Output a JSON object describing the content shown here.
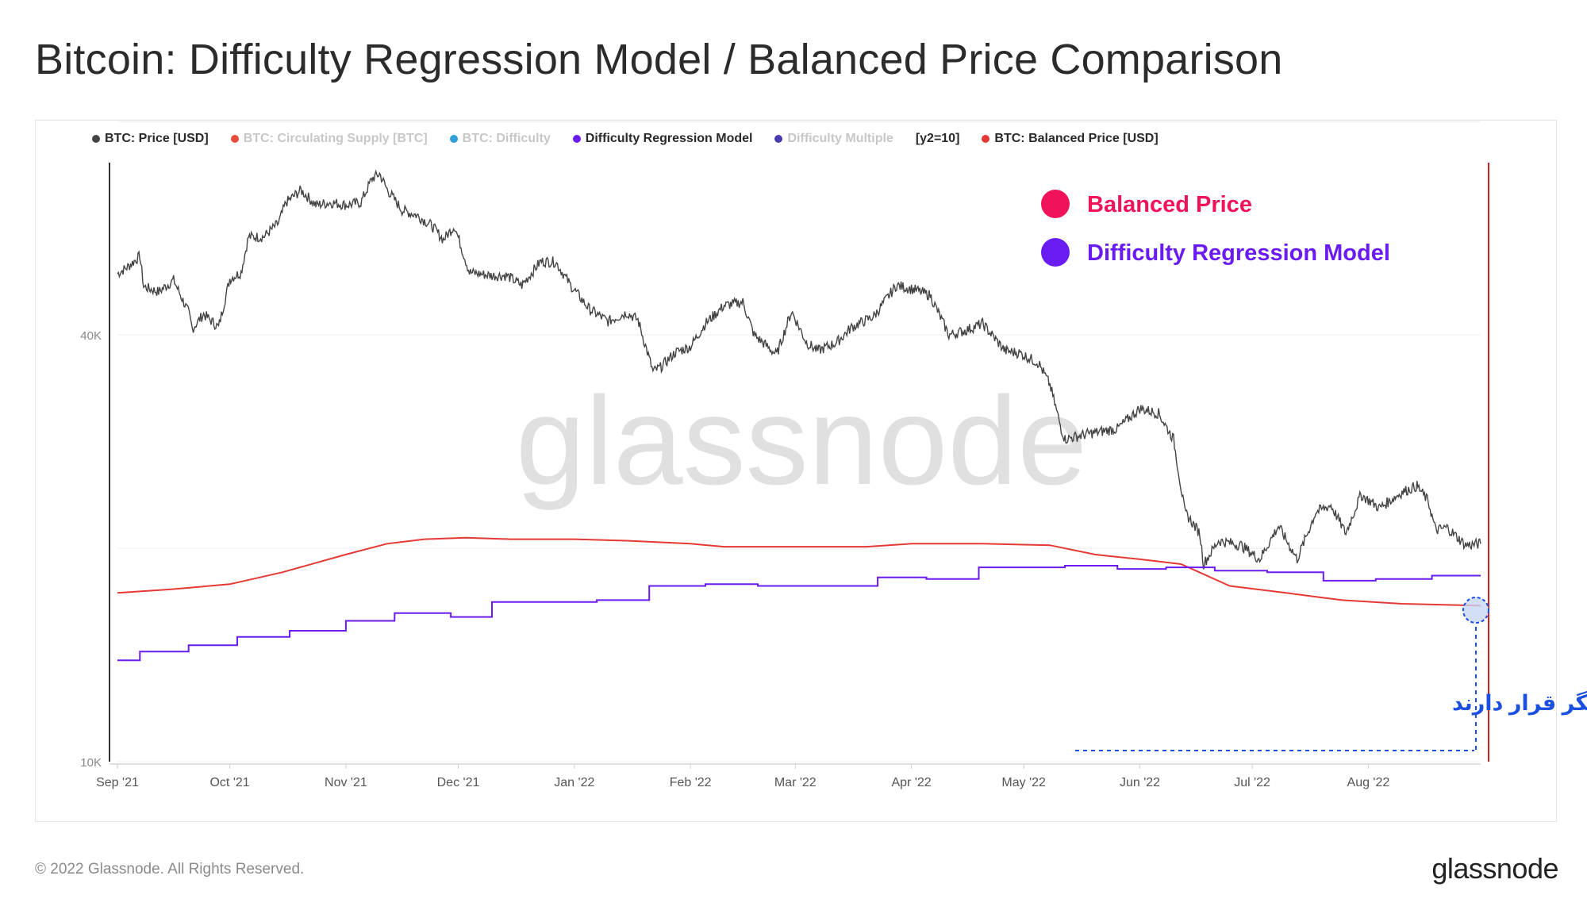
{
  "title": "Bitcoin: Difficulty Regression Model / Balanced Price Comparison",
  "legend": [
    {
      "label": "BTC: Price [USD]",
      "color": "#444444",
      "state": "active"
    },
    {
      "label": "BTC: Circulating Supply [BTC]",
      "color": "#e74c3c",
      "state": "dim"
    },
    {
      "label": "BTC: Difficulty",
      "color": "#2f9ed8",
      "state": "dim"
    },
    {
      "label": "Difficulty Regression Model",
      "color": "#6a1bf2",
      "state": "active"
    },
    {
      "label": "Difficulty Multiple",
      "color": "#4a3bb0",
      "state": "dim"
    },
    {
      "label": "[y2=10]",
      "color": "",
      "state": "active"
    },
    {
      "label": "BTC: Balanced Price [USD]",
      "color": "#e53935",
      "state": "active"
    }
  ],
  "annotations": {
    "balanced_price": {
      "label": "Balanced Price",
      "color": "#f0135a"
    },
    "regression_model": {
      "label": "Difficulty Regression Model",
      "color": "#6a1bf2"
    },
    "persian_note": {
      "text": "این دو معیار در تلاقی یکدیگر قرار دارند",
      "color": "#1a4fe0"
    }
  },
  "watermark": "glassnode",
  "footer": {
    "copyright": "© 2022 Glassnode. All Rights Reserved.",
    "logo": "glassnode"
  },
  "chart_data": {
    "type": "line",
    "title": "Bitcoin: Difficulty Regression Model / Balanced Price Comparison",
    "y_scale": "log",
    "ylim": [
      10000,
      70000
    ],
    "y_ticks": [
      {
        "value": 10000,
        "label": "10K"
      },
      {
        "value": 40000,
        "label": "40K"
      }
    ],
    "x_ticks": [
      "Sep '21",
      "Oct '21",
      "Nov '21",
      "Dec '21",
      "Jan '22",
      "Feb '22",
      "Mar '22",
      "Apr '22",
      "May '22",
      "Jun '22",
      "Jul '22",
      "Aug '22"
    ],
    "xlim": [
      "2021-09-01",
      "2022-08-31"
    ],
    "grid": "horizontal",
    "series": [
      {
        "name": "BTC: Price [USD]",
        "color": "#444444",
        "points": [
          [
            "2021-09-01",
            48800
          ],
          [
            "2021-09-04",
            50000
          ],
          [
            "2021-09-07",
            51700
          ],
          [
            "2021-09-08",
            46800
          ],
          [
            "2021-09-12",
            46000
          ],
          [
            "2021-09-16",
            47800
          ],
          [
            "2021-09-20",
            43000
          ],
          [
            "2021-09-21",
            40800
          ],
          [
            "2021-09-24",
            42800
          ],
          [
            "2021-09-28",
            41000
          ],
          [
            "2021-10-01",
            48000
          ],
          [
            "2021-10-04",
            49000
          ],
          [
            "2021-10-06",
            55000
          ],
          [
            "2021-10-10",
            55000
          ],
          [
            "2021-10-14",
            57500
          ],
          [
            "2021-10-16",
            61500
          ],
          [
            "2021-10-20",
            64000
          ],
          [
            "2021-10-24",
            61000
          ],
          [
            "2021-10-28",
            61500
          ],
          [
            "2021-11-01",
            61000
          ],
          [
            "2021-11-05",
            61500
          ],
          [
            "2021-11-08",
            66500
          ],
          [
            "2021-11-10",
            67500
          ],
          [
            "2021-11-12",
            64200
          ],
          [
            "2021-11-16",
            60000
          ],
          [
            "2021-11-20",
            59000
          ],
          [
            "2021-11-24",
            57000
          ],
          [
            "2021-11-27",
            54500
          ],
          [
            "2021-11-30",
            57000
          ],
          [
            "2021-12-04",
            49000
          ],
          [
            "2021-12-10",
            48500
          ],
          [
            "2021-12-14",
            48500
          ],
          [
            "2021-12-18",
            47000
          ],
          [
            "2021-12-23",
            50800
          ],
          [
            "2021-12-27",
            50700
          ],
          [
            "2021-12-31",
            47000
          ],
          [
            "2022-01-05",
            43500
          ],
          [
            "2022-01-10",
            41800
          ],
          [
            "2022-01-15",
            43000
          ],
          [
            "2022-01-18",
            42000
          ],
          [
            "2022-01-22",
            35500
          ],
          [
            "2022-01-24",
            36000
          ],
          [
            "2022-01-28",
            37800
          ],
          [
            "2022-02-01",
            38500
          ],
          [
            "2022-02-05",
            41500
          ],
          [
            "2022-02-10",
            44000
          ],
          [
            "2022-02-15",
            44500
          ],
          [
            "2022-02-18",
            40000
          ],
          [
            "2022-02-24",
            37500
          ],
          [
            "2022-02-28",
            43200
          ],
          [
            "2022-03-04",
            39000
          ],
          [
            "2022-03-07",
            38000
          ],
          [
            "2022-03-12",
            39000
          ],
          [
            "2022-03-16",
            41000
          ],
          [
            "2022-03-22",
            42500
          ],
          [
            "2022-03-28",
            47000
          ],
          [
            "2022-04-02",
            46300
          ],
          [
            "2022-04-06",
            45500
          ],
          [
            "2022-04-11",
            40000
          ],
          [
            "2022-04-15",
            40500
          ],
          [
            "2022-04-20",
            41500
          ],
          [
            "2022-04-26",
            38000
          ],
          [
            "2022-04-30",
            37700
          ],
          [
            "2022-05-05",
            36500
          ],
          [
            "2022-05-08",
            34000
          ],
          [
            "2022-05-11",
            29500
          ],
          [
            "2022-05-12",
            28500
          ],
          [
            "2022-05-18",
            29000
          ],
          [
            "2022-05-26",
            29500
          ],
          [
            "2022-06-01",
            31500
          ],
          [
            "2022-06-06",
            31000
          ],
          [
            "2022-06-10",
            28500
          ],
          [
            "2022-06-13",
            22500
          ],
          [
            "2022-06-17",
            21000
          ],
          [
            "2022-06-18",
            19000
          ],
          [
            "2022-06-22",
            20500
          ],
          [
            "2022-06-28",
            20200
          ],
          [
            "2022-07-03",
            19300
          ],
          [
            "2022-07-08",
            21500
          ],
          [
            "2022-07-13",
            19300
          ],
          [
            "2022-07-18",
            22500
          ],
          [
            "2022-07-22",
            23000
          ],
          [
            "2022-07-26",
            21000
          ],
          [
            "2022-07-30",
            23800
          ],
          [
            "2022-08-04",
            22800
          ],
          [
            "2022-08-10",
            24000
          ],
          [
            "2022-08-14",
            24500
          ],
          [
            "2022-08-17",
            23300
          ],
          [
            "2022-08-19",
            21200
          ],
          [
            "2022-08-22",
            21400
          ],
          [
            "2022-08-27",
            20200
          ],
          [
            "2022-08-31",
            20300
          ]
        ]
      },
      {
        "name": "BTC: Balanced Price [USD]",
        "color": "#e53935",
        "points": [
          [
            "2021-09-01",
            17300
          ],
          [
            "2021-09-15",
            17500
          ],
          [
            "2021-10-01",
            17800
          ],
          [
            "2021-10-15",
            18500
          ],
          [
            "2021-11-01",
            19600
          ],
          [
            "2021-11-12",
            20300
          ],
          [
            "2021-11-22",
            20600
          ],
          [
            "2021-12-03",
            20700
          ],
          [
            "2021-12-15",
            20600
          ],
          [
            "2022-01-01",
            20600
          ],
          [
            "2022-01-15",
            20500
          ],
          [
            "2022-02-01",
            20300
          ],
          [
            "2022-02-10",
            20100
          ],
          [
            "2022-03-01",
            20100
          ],
          [
            "2022-03-20",
            20100
          ],
          [
            "2022-04-01",
            20300
          ],
          [
            "2022-04-20",
            20300
          ],
          [
            "2022-05-08",
            20200
          ],
          [
            "2022-05-20",
            19600
          ],
          [
            "2022-06-01",
            19300
          ],
          [
            "2022-06-12",
            19000
          ],
          [
            "2022-06-25",
            17700
          ],
          [
            "2022-07-10",
            17300
          ],
          [
            "2022-07-25",
            16900
          ],
          [
            "2022-08-10",
            16700
          ],
          [
            "2022-08-31",
            16600
          ]
        ]
      },
      {
        "name": "Difficulty Regression Model",
        "color": "#6a1bf2",
        "steps": [
          [
            "2021-09-01",
            13900
          ],
          [
            "2021-09-07",
            14300
          ],
          [
            "2021-09-20",
            14600
          ],
          [
            "2021-10-03",
            15000
          ],
          [
            "2021-10-17",
            15300
          ],
          [
            "2021-11-01",
            15800
          ],
          [
            "2021-11-14",
            16200
          ],
          [
            "2021-11-29",
            16000
          ],
          [
            "2021-12-10",
            16800
          ],
          [
            "2022-01-07",
            16900
          ],
          [
            "2022-01-21",
            17700
          ],
          [
            "2022-02-05",
            17800
          ],
          [
            "2022-02-19",
            17700
          ],
          [
            "2022-03-05",
            17700
          ],
          [
            "2022-03-23",
            18200
          ],
          [
            "2022-04-05",
            18100
          ],
          [
            "2022-04-19",
            18800
          ],
          [
            "2022-05-02",
            18800
          ],
          [
            "2022-05-12",
            18900
          ],
          [
            "2022-05-26",
            18700
          ],
          [
            "2022-06-08",
            18800
          ],
          [
            "2022-06-21",
            18600
          ],
          [
            "2022-07-05",
            18500
          ],
          [
            "2022-07-20",
            18000
          ],
          [
            "2022-08-03",
            18100
          ],
          [
            "2022-08-18",
            18300
          ],
          [
            "2022-08-31",
            18300
          ]
        ]
      }
    ]
  }
}
